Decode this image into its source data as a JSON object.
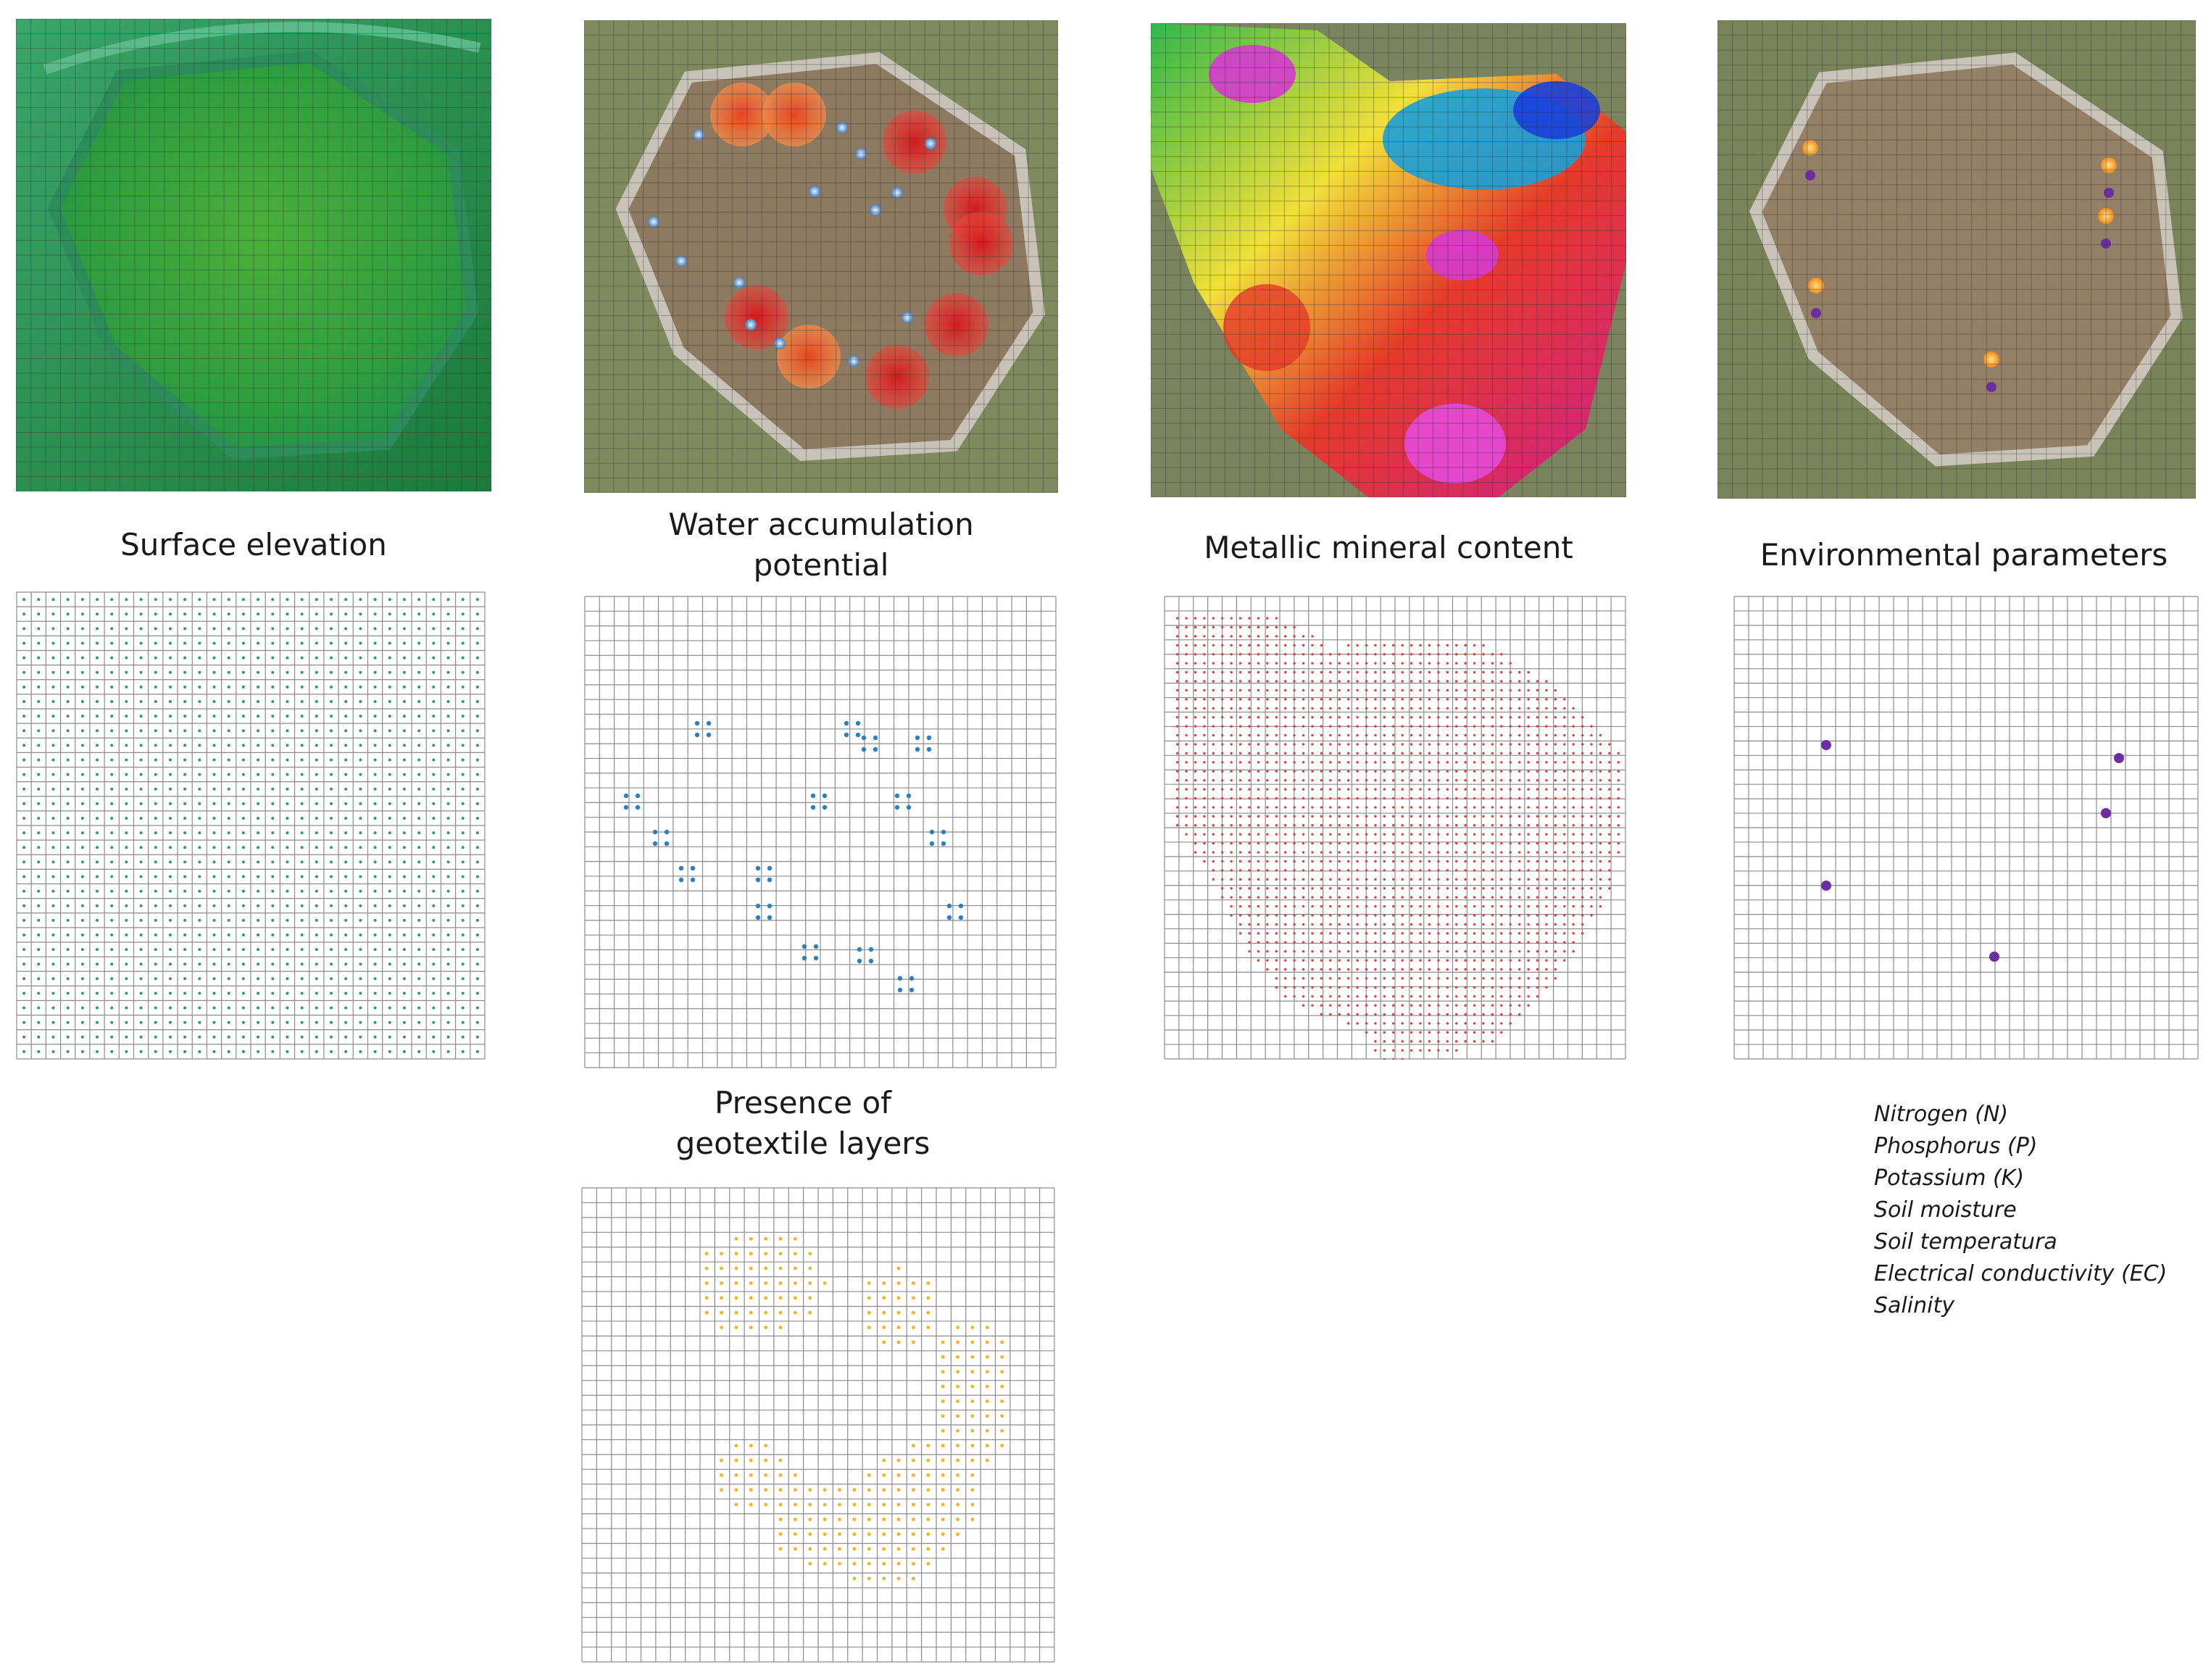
{
  "panels": [
    {
      "id": "surface",
      "label_lines": [
        "Surface elevation"
      ]
    },
    {
      "id": "water",
      "label_lines": [
        "Water accumulation",
        "potential"
      ]
    },
    {
      "id": "metal",
      "label_lines": [
        "Metallic mineral content"
      ]
    },
    {
      "id": "env",
      "label_lines": [
        "Environmental parameters"
      ]
    },
    {
      "id": "geotextile",
      "label_lines": [
        "Presence of",
        "geotextile layers"
      ]
    }
  ],
  "environmental_parameters": [
    "Nitrogen (N)",
    "Phosphorus (P)",
    "Potassium (K)",
    "Soil moisture",
    "Soil temperatura",
    "Electrical conductivity (EC)",
    "Salinity"
  ],
  "colors": {
    "elevation_dots": "#2e9a6a",
    "water_dots": "#2b7fc4",
    "metal_dots": "#e43c3c",
    "env_dots": "#6a2ea0",
    "geotextile_dots": "#f2b51c",
    "grid_line": "#8c8c8c"
  },
  "icons": {
    "sensor_marker": "sphere-marker-icon",
    "rain_marker": "raindrop-marker-icon"
  }
}
